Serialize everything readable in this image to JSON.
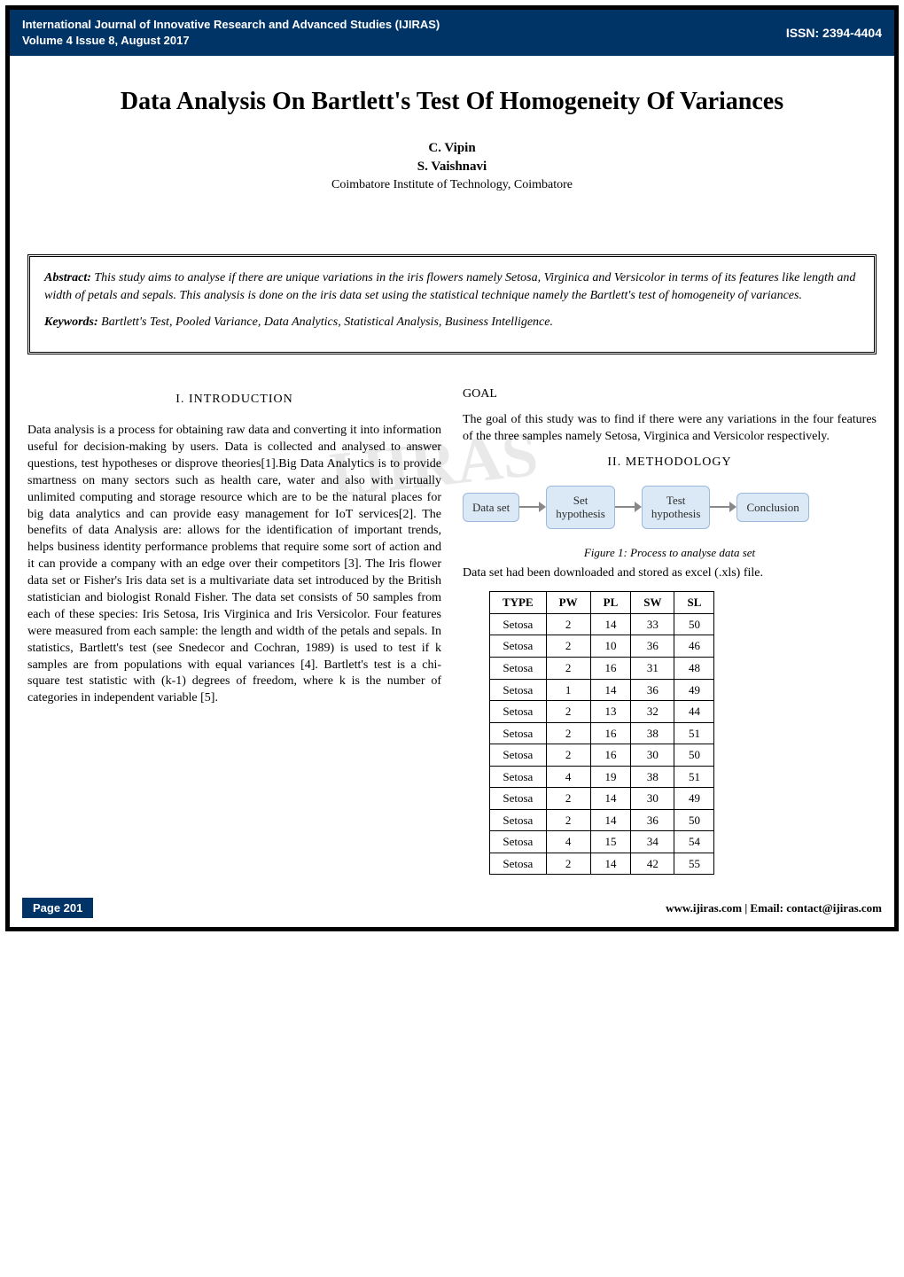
{
  "header": {
    "journal_line1": "International Journal of Innovative Research and Advanced Studies (IJIRAS)",
    "journal_line2": "Volume 4 Issue 8, August 2017",
    "issn": "ISSN: 2394-4404",
    "bar_bg": "#003366",
    "bar_fg": "#ffffff"
  },
  "title": "Data Analysis On Bartlett's Test Of Homogeneity Of Variances",
  "authors": {
    "a1": "C. Vipin",
    "a2": "S. Vaishnavi",
    "affiliation": "Coimbatore Institute of Technology, Coimbatore"
  },
  "abstract": {
    "label": "Abstract:",
    "text": "This study aims to analyse if there are unique variations in the iris flowers namely Setosa, Virginica and Versicolor in terms of its features like length and width of petals and sepals. This analysis is done on the iris data set using the statistical technique namely the Bartlett's test of homogeneity of variances.",
    "kw_label": "Keywords:",
    "keywords": "Bartlett's Test, Pooled Variance, Data Analytics, Statistical Analysis, Business Intelligence."
  },
  "watermark": "IJIRAS",
  "left_column": {
    "sec1_heading": "I.   INTRODUCTION",
    "intro_text": "Data analysis is a process for obtaining raw data and converting it into information useful for decision-making by users. Data is collected and analysed to answer questions, test hypotheses or disprove theories[1].Big Data Analytics is to provide smartness on many sectors such as health care, water and also with virtually unlimited computing and storage resource which are to be the natural places for big data analytics and can provide easy management for IoT services[2]. The benefits of data Analysis are: allows for the identification of important trends, helps business identity performance problems that require some sort of action and it can provide a company with an edge over their competitors [3]. The Iris flower data set or Fisher's Iris data set is a multivariate data set introduced by the British statistician and biologist Ronald Fisher. The data set consists of 50 samples from each of these species: Iris Setosa, Iris Virginica and Iris Versicolor. Four features were measured from each sample: the length and width of the petals and sepals. In statistics, Bartlett's test (see Snedecor and Cochran, 1989) is used to test if k samples are from populations with equal variances [4]. Bartlett's test is a chi-square test statistic with (k-1) degrees of freedom, where k is the number of categories in independent variable [5]."
  },
  "right_column": {
    "goal_heading": "GOAL",
    "goal_text": "The goal of this study was to find if there were any variations in the four features of the three samples namely Setosa, Virginica and Versicolor respectively.",
    "sec2_heading": "II.   METHODOLOGY",
    "flow": {
      "box1": "Data set",
      "box2": "Set\nhypothesis",
      "box3": "Test\nhypothesis",
      "box4": "Conclusion",
      "box_bg": "#dbe9f6",
      "box_border": "#9cb9db",
      "arrow_color": "#888888"
    },
    "fig1_caption": "Figure 1: Process to analyse data set",
    "after_caption": "Data set had been downloaded and stored as excel (.xls) file.",
    "table": {
      "columns": [
        "TYPE",
        "PW",
        "PL",
        "SW",
        "SL"
      ],
      "rows": [
        [
          "Setosa",
          2,
          14,
          33,
          50
        ],
        [
          "Setosa",
          2,
          10,
          36,
          46
        ],
        [
          "Setosa",
          2,
          16,
          31,
          48
        ],
        [
          "Setosa",
          1,
          14,
          36,
          49
        ],
        [
          "Setosa",
          2,
          13,
          32,
          44
        ],
        [
          "Setosa",
          2,
          16,
          38,
          51
        ],
        [
          "Setosa",
          2,
          16,
          30,
          50
        ],
        [
          "Setosa",
          4,
          19,
          38,
          51
        ],
        [
          "Setosa",
          2,
          14,
          30,
          49
        ],
        [
          "Setosa",
          2,
          14,
          36,
          50
        ],
        [
          "Setosa",
          4,
          15,
          34,
          54
        ],
        [
          "Setosa",
          2,
          14,
          42,
          55
        ]
      ],
      "border_color": "#000000",
      "font_size": 13
    }
  },
  "footer": {
    "page_label": "Page 201",
    "site_text": "www.ijiras.com | Email: contact@ijiras.com",
    "badge_bg": "#003366",
    "badge_fg": "#ffffff"
  }
}
